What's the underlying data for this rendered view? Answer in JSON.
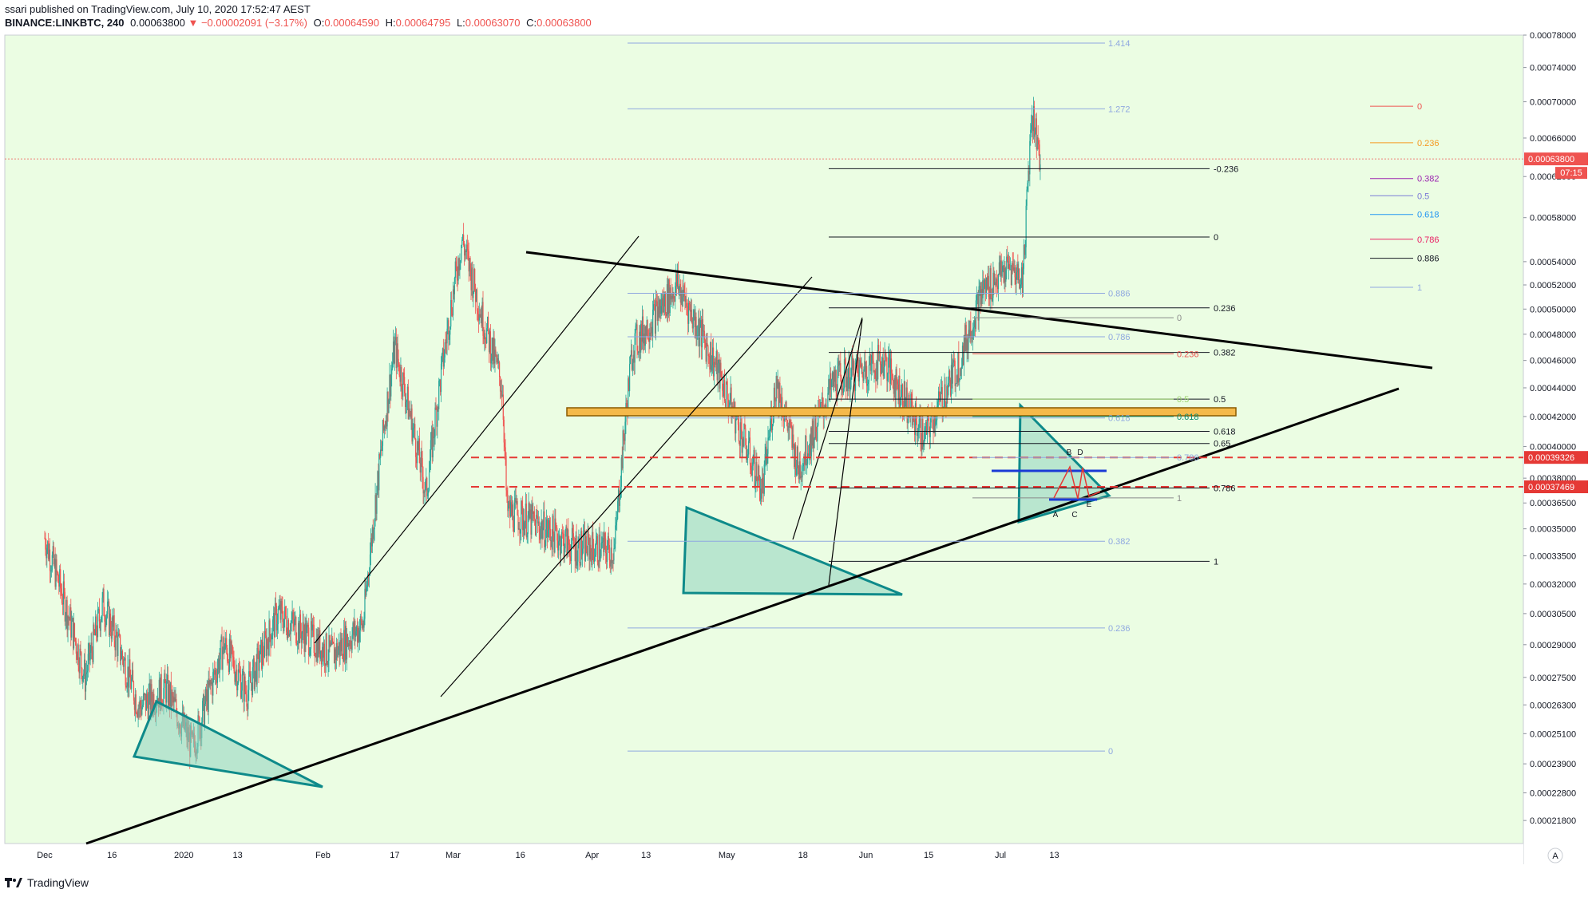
{
  "header": {
    "publisher_line": "ssari published on TradingView.com, July 10, 2020 17:52:47 AEST",
    "publisher_name": "ssari",
    "symbol": "BINANCE:LINKBTC, 240",
    "last": "0.00063800",
    "change": "−0.00002091 (−3.17%)",
    "open_label": "O:",
    "open": "0.00064590",
    "high_label": "H:",
    "high": "0.00064795",
    "low_label": "L:",
    "low": "0.00063070",
    "close_label": "C:",
    "close": "0.00063800"
  },
  "footer": {
    "brand": "TradingView"
  },
  "colors": {
    "background": "#ebfde3",
    "up": "#26a69a",
    "down": "#ef5350",
    "triangle_fill": "#8fd3c0",
    "triangle_stroke": "#0e8a8a",
    "orange_zone": "#f5b94a",
    "price_tag": "#ef5350",
    "fib_blue": "#8fa8e0"
  },
  "chart_data": {
    "type": "candlestick",
    "title": "",
    "xlabel": "",
    "ylabel": "",
    "ylim": [
      0.00021,
      0.00078
    ],
    "y_scale": "log",
    "current_price": "0.00063800",
    "countdown": "07:15",
    "price_tags": [
      "0.00063800",
      "0.00039326",
      "0.00037469"
    ],
    "x_ticks": [
      "Dec",
      "16",
      "2020",
      "13",
      "Feb",
      "17",
      "Mar",
      "16",
      "Apr",
      "13",
      "May",
      "18",
      "Jun",
      "15",
      "Jul",
      "13"
    ],
    "y_ticks": [
      "0.00078000",
      "0.00074000",
      "0.00070000",
      "0.00066000",
      "0.00062000",
      "0.00058000",
      "0.00054000",
      "0.00052000",
      "0.00050000",
      "0.00048000",
      "0.00046000",
      "0.00044000",
      "0.00042000",
      "0.00040000",
      "0.00038000",
      "0.00036500",
      "0.00035000",
      "0.00033500",
      "0.00032000",
      "0.00030500",
      "0.00029000",
      "0.00027500",
      "0.00026300",
      "0.00025100",
      "0.00023900",
      "0.00022800",
      "0.00021800"
    ],
    "price_path": [
      [
        "Dec 1",
        0.000345
      ],
      [
        "Dec 10",
        0.000275
      ],
      [
        "Dec 14",
        0.00031
      ],
      [
        "Dec 22",
        0.000262
      ],
      [
        "Dec 28",
        0.00027
      ],
      [
        "Jan 3",
        0.000245
      ],
      [
        "Jan 10",
        0.00029
      ],
      [
        "Jan 15",
        0.000268
      ],
      [
        "Jan 22",
        0.000305
      ],
      [
        "Feb 3",
        0.000285
      ],
      [
        "Feb 10",
        0.0003
      ],
      [
        "Feb 17",
        0.00047
      ],
      [
        "Feb 24",
        0.00037
      ],
      [
        "Mar 3",
        0.00056
      ],
      [
        "Mar 7",
        0.0005
      ],
      [
        "Mar 12",
        0.00044
      ],
      [
        "Mar 13",
        0.00036
      ],
      [
        "Mar 18",
        0.000355
      ],
      [
        "Mar 28",
        0.00034
      ],
      [
        "Apr 6",
        0.000338
      ],
      [
        "Apr 10",
        0.00047
      ],
      [
        "Apr 20",
        0.00052
      ],
      [
        "Apr 28",
        0.00046
      ],
      [
        "May 4",
        0.00041
      ],
      [
        "May 9",
        0.000372
      ],
      [
        "May 12",
        0.000445
      ],
      [
        "May 17",
        0.000385
      ],
      [
        "May 25",
        0.000445
      ],
      [
        "Jun 5",
        0.00046
      ],
      [
        "Jun 14",
        0.000405
      ],
      [
        "Jun 22",
        0.00046
      ],
      [
        "Jun 27",
        0.000515
      ],
      [
        "Jul 3",
        0.000535
      ],
      [
        "Jul 6",
        0.000525
      ],
      [
        "Jul 8",
        0.00069
      ],
      [
        "Jul 10",
        0.000638
      ]
    ],
    "fib_right": [
      {
        "label": "0",
        "price": 0.000695,
        "color": "#ef5350"
      },
      {
        "label": "0.236",
        "price": 0.000655,
        "color": "#f59a23"
      },
      {
        "label": "0.382",
        "price": 0.000618,
        "color": "#9c27b0"
      },
      {
        "label": "0.5",
        "price": 0.000601,
        "color": "#7b7bd6"
      },
      {
        "label": "0.618",
        "price": 0.000583,
        "color": "#2196f3"
      },
      {
        "label": "0.786",
        "price": 0.00056,
        "color": "#e91e63"
      },
      {
        "label": "0.886",
        "price": 0.000543,
        "color": "#131722"
      },
      {
        "label": "1",
        "price": 0.000518,
        "color": "#8fa8e0"
      }
    ],
    "fib_black": [
      {
        "label": "-0.236",
        "price": 0.000628
      },
      {
        "label": "0",
        "price": 0.000562
      },
      {
        "label": "0.236",
        "price": 0.000501
      },
      {
        "label": "0.382",
        "price": 0.000466
      },
      {
        "label": "0.5",
        "price": 0.000432
      },
      {
        "label": "0.618",
        "price": 0.00041
      },
      {
        "label": "0.65",
        "price": 0.000402
      },
      {
        "label": "0.786",
        "price": 0.000374
      },
      {
        "label": "1",
        "price": 0.000332
      }
    ],
    "fib_blue": [
      {
        "label": "1.414",
        "price": 0.00077
      },
      {
        "label": "1.272",
        "price": 0.000692
      },
      {
        "label": "0.886",
        "price": 0.000513
      },
      {
        "label": "0.786",
        "price": 0.000478
      },
      {
        "label": "0.618",
        "price": 0.000419
      },
      {
        "label": "0.382",
        "price": 0.000343
      },
      {
        "label": "0.236",
        "price": 0.000298
      },
      {
        "label": "0",
        "price": 0.000244
      }
    ],
    "fib_inner": [
      {
        "label": "0",
        "price": 0.000493,
        "color": "#8a8a8a"
      },
      {
        "label": "0.236",
        "price": 0.000465,
        "color": "#ef5350"
      },
      {
        "label": "0.5",
        "price": 0.000432,
        "color": "#9bd16e"
      },
      {
        "label": "0.618",
        "price": 0.00042,
        "color": "#0e8a6e"
      },
      {
        "label": "0.786",
        "price": 0.000393,
        "color": "#8fa8e0"
      },
      {
        "label": "1",
        "price": 0.000368,
        "color": "#8a8a8a"
      }
    ],
    "pattern_labels": [
      "A",
      "B",
      "C",
      "D",
      "E"
    ]
  }
}
